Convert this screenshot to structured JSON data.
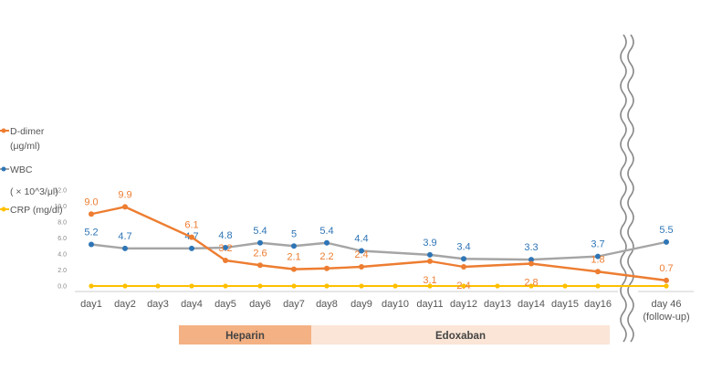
{
  "colors": {
    "ddimer": "#ED7D31",
    "wbc": "#A5A5A5",
    "wbc_marker": "#2E75B6",
    "wbc_label": "#2E75B6",
    "crp": "#FFC000",
    "heparin_band": "#F4B183",
    "edoxaban_band": "#FBE5D6"
  },
  "chart_data": {
    "type": "line",
    "categories": [
      "day1",
      "day2",
      "day3",
      "day4",
      "day5",
      "day6",
      "day7",
      "day8",
      "day9",
      "day10",
      "day11",
      "day12",
      "day13",
      "day14",
      "day15",
      "day16",
      "day 46"
    ],
    "x_last_sublabel": "(follow-up)",
    "yticks": [
      "0.0",
      "2.0",
      "4.0",
      "6.0",
      "8.0",
      "10.0",
      "12.0"
    ],
    "ylim": [
      0,
      12
    ],
    "axis_break_after": "day16",
    "series": [
      {
        "key": "ddimer",
        "legend": [
          "D-dimer",
          "(μg/ml)"
        ],
        "points": [
          [
            "day1",
            9.0
          ],
          [
            "day2",
            9.9
          ],
          [
            "day4",
            6.1
          ],
          [
            "day5",
            3.2
          ],
          [
            "day6",
            2.6
          ],
          [
            "day7",
            2.1
          ],
          [
            "day8",
            2.2
          ],
          [
            "day9",
            2.4
          ],
          [
            "day11",
            3.1
          ],
          [
            "day12",
            2.4
          ],
          [
            "day14",
            2.8
          ],
          [
            "day16",
            1.8
          ],
          [
            "day 46",
            0.7
          ]
        ],
        "labels": [
          "9.0",
          "9.9",
          "6.1",
          "3.2",
          "2.6",
          "2.1",
          "2.2",
          "2.4",
          "3.1",
          "2.4",
          "2.8",
          "1.8",
          "0.7"
        ]
      },
      {
        "key": "wbc",
        "legend": [
          "WBC",
          "( × 10^3/μl)"
        ],
        "points": [
          [
            "day1",
            5.2
          ],
          [
            "day2",
            4.7
          ],
          [
            "day4",
            4.7
          ],
          [
            "day5",
            4.8
          ],
          [
            "day6",
            5.4
          ],
          [
            "day7",
            5.0
          ],
          [
            "day8",
            5.4
          ],
          [
            "day9",
            4.4
          ],
          [
            "day11",
            3.9
          ],
          [
            "day12",
            3.4
          ],
          [
            "day14",
            3.3
          ],
          [
            "day16",
            3.7
          ],
          [
            "day 46",
            5.5
          ]
        ],
        "labels": [
          "5.2",
          "4.7",
          "4.7",
          "4.8",
          "5.4",
          "5",
          "5.4",
          "4.4",
          "3.9",
          "3.4",
          "3.3",
          "3.7",
          "5.5"
        ]
      },
      {
        "key": "crp",
        "legend": [
          "CRP (mg/dl)"
        ],
        "points": [
          [
            "day1",
            0
          ],
          [
            "day2",
            0
          ],
          [
            "day3",
            0
          ],
          [
            "day4",
            0
          ],
          [
            "day5",
            0
          ],
          [
            "day6",
            0
          ],
          [
            "day7",
            0
          ],
          [
            "day8",
            0
          ],
          [
            "day9",
            0
          ],
          [
            "day10",
            0
          ],
          [
            "day11",
            0
          ],
          [
            "day12",
            0
          ],
          [
            "day13",
            0
          ],
          [
            "day14",
            0
          ],
          [
            "day15",
            0
          ],
          [
            "day16",
            0
          ],
          [
            "day 46",
            0
          ]
        ],
        "labels": []
      }
    ],
    "treatment_bands": [
      {
        "label": "Heparin",
        "from": "day4",
        "to": "day7"
      },
      {
        "label": "Edoxaban",
        "from": "day8",
        "to": "day16"
      }
    ]
  }
}
